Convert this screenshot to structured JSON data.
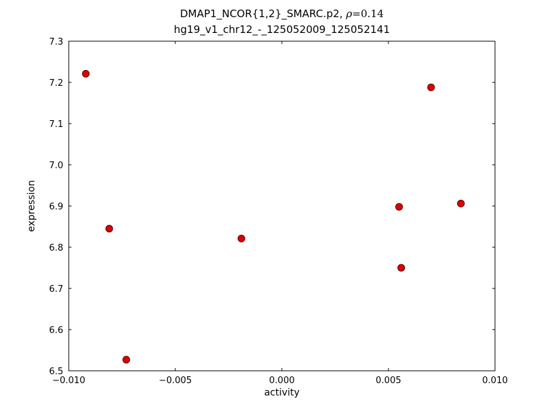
{
  "chart_data": {
    "type": "scatter",
    "title": {
      "main": "DMAP1_NCOR{1,2}_SMARC.p2, ",
      "rho": "ρ",
      "rest": "=0.14"
    },
    "subtitle": "hg19_v1_chr12_-_125052009_125052141",
    "xlabel": "activity",
    "ylabel": "expression",
    "xlim": [
      -0.01,
      0.01
    ],
    "ylim": [
      6.5,
      7.3
    ],
    "grid": false,
    "legend": "none",
    "xticks": {
      "values": [
        -0.01,
        -0.005,
        0.0,
        0.005,
        0.01
      ],
      "labels": [
        "−0.010",
        "−0.005",
        "0.000",
        "0.005",
        "0.010"
      ]
    },
    "yticks": {
      "values": [
        6.5,
        6.6,
        6.7,
        6.8,
        6.9,
        7.0,
        7.1,
        7.2,
        7.3
      ],
      "labels": [
        "6.5",
        "6.6",
        "6.7",
        "6.8",
        "6.9",
        "7.0",
        "7.1",
        "7.2",
        "7.3"
      ]
    },
    "marker": {
      "shape": "circle",
      "fill": "#dd0000",
      "edge": "#550000",
      "radius": 5
    },
    "points": [
      {
        "x": -0.0092,
        "y": 7.221
      },
      {
        "x": -0.0081,
        "y": 6.845
      },
      {
        "x": -0.0073,
        "y": 6.527
      },
      {
        "x": -0.0019,
        "y": 6.821
      },
      {
        "x": 0.0055,
        "y": 6.898
      },
      {
        "x": 0.0056,
        "y": 6.75
      },
      {
        "x": 0.007,
        "y": 7.188
      },
      {
        "x": 0.0084,
        "y": 6.906
      }
    ]
  }
}
